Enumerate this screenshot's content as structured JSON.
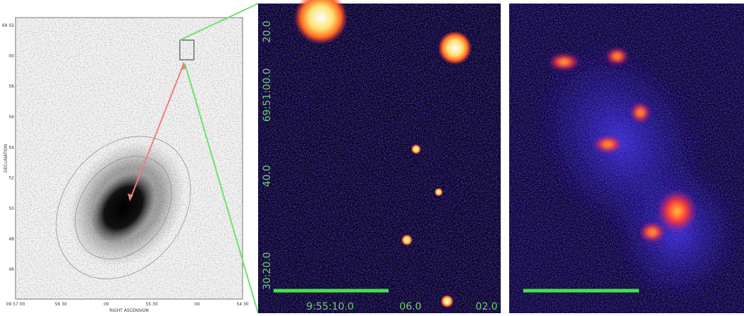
{
  "left_panel": {
    "y_axis_label": "DECLINATION",
    "x_axis_label": "RIGHT ASCENSION",
    "y_tick_labels": [
      "69 02",
      "00",
      "58",
      "56",
      "54",
      "52",
      "50",
      "48",
      "46"
    ],
    "x_tick_labels": [
      "09 57 00",
      "56 30",
      "00",
      "55 30",
      "00",
      "54 30"
    ]
  },
  "middle_panel": {
    "dec_labels": [
      "20.0",
      "69:51:00.0",
      "40.0",
      "30:20.0"
    ],
    "ra_labels": [
      "9:55:10.0",
      "06.0",
      "02.0"
    ]
  }
}
